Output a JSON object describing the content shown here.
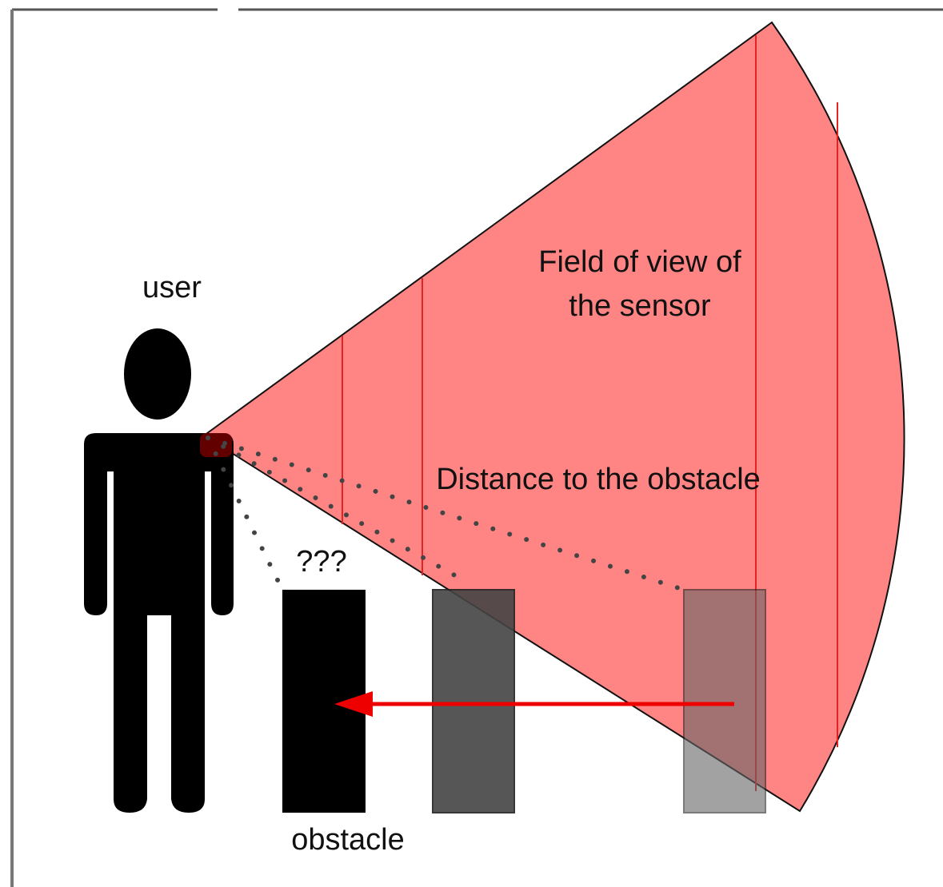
{
  "labels": {
    "user": "user",
    "field_of_view": [
      "Field of view of",
      "the sensor"
    ],
    "distance": "Distance to the obstacle",
    "unknown": "???",
    "obstacle": "obstacle"
  }
}
